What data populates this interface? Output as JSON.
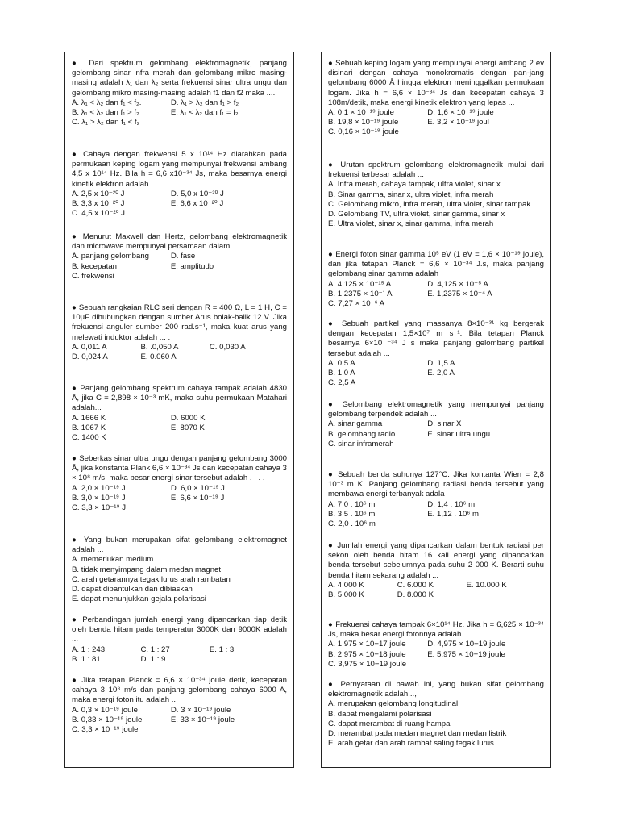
{
  "left": [
    {
      "text": "● Dari spektrum gelombang elektromagnetik, panjang gelombang sinar infra merah dan gelombang mikro masing-masing adalah λ₁ dan λ₂ serta frekuensi sinar ultra ungu dan gelombang mikro masing-masing adalah f1 dan f2 maka ....",
      "options": [
        [
          "A. λ₁ < λ₂ dan f₁ < f₂.",
          "D. λ₁ > λ₂ dan f₁ > f₂"
        ],
        [
          "B. λ₁ < λ₂ dan f₁ > f₂",
          "E. λ₁ < λ₂ dan f₁ = f₂"
        ],
        [
          "C. λ₁ > λ₂ dan f₁ < f₂"
        ]
      ]
    },
    {
      "text": "● Cahaya dengan frekwensi 5 x 10¹⁴ Hz diarahkan pada permukaan keping logam yang mempunyai frekwensi ambang 4,5 x 10¹⁴ Hz. Bila h = 6,6 x10⁻³⁴ Js, maka besarnya energi kinetik elektron adalah.......",
      "options": [
        [
          "A. 2,5 x 10⁻²⁰ J",
          "D. 5,0 x 10⁻²⁰ J"
        ],
        [
          "B. 3,3 x 10⁻²⁰ J",
          "E. 6,6 x 10⁻²⁰ J"
        ],
        [
          "C. 4,5 x 10⁻²⁰ J"
        ]
      ]
    },
    {
      "text": "● Menurut Maxwell dan Hertz, gelombang elektromagnetik dan microwave mempunyai persamaan dalam.........",
      "options": [
        [
          "A. panjang gelombang",
          "D. fase"
        ],
        [
          "B. kecepatan",
          "E. amplitudo"
        ],
        [
          "C. frekwensi"
        ]
      ]
    },
    {
      "text": "● Sebuah rangkaian RLC seri dengan R = 400 Ω, L = 1 H, C = 10μF dihubungkan dengan sumber Arus bolak-balik 12 V. Jika frekuensi anguler sumber 200 rad.s⁻¹, maka kuat arus yang melewati induktor adalah ... .",
      "options": [
        [
          "A. 0,011 A",
          "B. .0,050 A",
          "C. 0,030 A"
        ],
        [
          "D. 0,024 A",
          "E. 0.060 A"
        ]
      ]
    },
    {
      "text": "● Panjang gelombang spektrum cahaya tampak adalah 4830 Å, jika C = 2,898 × 10⁻³ mK, maka suhu permukaan Matahari adalah...",
      "options": [
        [
          "A. 1666 K",
          "D. 6000 K"
        ],
        [
          "B. 1067 K",
          "E. 8070 K"
        ],
        [
          "C. 1400 K"
        ]
      ]
    },
    {
      "text": "● Seberkas sinar ultra ungu dengan panjang gelombang 3000 Å, jika konstanta Plank 6,6 × 10⁻³⁴ Js dan kecepatan cahaya 3 × 10⁸ m/s, maka besar energi sinar tersebut adalah . . . .",
      "options": [
        [
          "A. 2,0 × 10⁻¹⁹ J",
          "D. 6,0 × 10⁻¹⁹ J"
        ],
        [
          "B. 3,0 × 10⁻¹⁹ J",
          "E. 6,6 × 10⁻¹⁹ J"
        ],
        [
          "C. 3,3 × 10⁻¹⁹ J"
        ]
      ]
    },
    {
      "text": "● Yang bukan merupakan sifat gelombang elektromagnet adalah ...",
      "options": [
        [
          "A. memerlukan medium"
        ],
        [
          "B. tidak menyimpang dalam medan magnet"
        ],
        [
          "C. arah getarannya tegak lurus arah rambatan"
        ],
        [
          "D. dapat dipantulkan dan dibiaskan"
        ],
        [
          "E. dapat menunjukkan gejala polarisasi"
        ]
      ]
    },
    {
      "text": "● Perbandingan jumlah energi yang dipancarkan tiap detik oleh benda hitam pada temperatur 3000K dan 9000K adalah ...",
      "options": [
        [
          "A. 1 : 243",
          "C. 1 : 27",
          "E. 1 : 3"
        ],
        [
          "B. 1 : 81",
          "D. 1 : 9"
        ]
      ]
    },
    {
      "text": "● Jika tetapan Planck = 6,6 × 10⁻³⁴ joule detik, kecepatan cahaya 3 10⁸ m/s dan panjang gelombang cahaya 6000 A, maka energi foton itu adalah ...",
      "options": [
        [
          "A. 0,3 × 10⁻¹⁹ joule",
          "D. 3 × 10⁻¹⁹ joule"
        ],
        [
          "B. 0,33 × 10⁻¹⁹ joule",
          "E. 33 × 10⁻¹⁹ joule"
        ],
        [
          "C. 3,3 × 10⁻¹⁹ joule"
        ]
      ]
    }
  ],
  "right": [
    {
      "text": "● Sebuah keping logam yang mempunyai energi ambang 2 ev disinari dengan cahaya monokromatis dengan pan-jang gelombang 6000 Å hingga elektron meninggalkan permukaan logam. Jika h = 6,6 × 10⁻³⁴ Js dan kecepatan cahaya 3 108m/detik, maka energi kinetik elektron yang lepas ...",
      "options": [
        [
          "A. 0,1 × 10⁻¹⁹ joule",
          "D. 1,6 × 10⁻¹⁹ joule"
        ],
        [
          "B. 19,8 × 10⁻¹⁹ joule",
          "E. 3,2 × 10⁻¹⁹ joul"
        ],
        [
          "C. 0,16 × 10⁻¹⁹ joule"
        ]
      ]
    },
    {
      "text": "● Urutan spektrum gelombang elektromagnetik mulai dari frekuensi terbesar adalah ...",
      "options": [
        [
          "A. Infra merah, cahaya tampak, ultra violet, sinar x"
        ],
        [
          "B. Sinar gamma, sinar x, ultra violet, infra merah"
        ],
        [
          "C. Gelombang mikro, infra merah, ultra violet, sinar tampak"
        ],
        [
          "D. Gelombang TV, ultra violet, sinar gamma, sinar x"
        ],
        [
          "E. Ultra violet, sinar x, sinar gamma, infra merah"
        ]
      ]
    },
    {
      "text": "● Energi foton sinar gamma 10⁵ eV (1 eV = 1,6 × 10⁻¹⁹ joule), dan jika tetapan Planck = 6,6 × 10⁻³⁴ J.s, maka panjang gelombang sinar gamma adalah",
      "options": [
        [
          "A. 4,125 × 10⁻¹⁵ A",
          "D. 4,125 × 10⁻⁵ A"
        ],
        [
          "B. 1,2375 × 10⁻¹ A",
          "E. 1,2375 × 10⁻⁴ A"
        ],
        [
          "C. 7,27 × 10⁻⁶ A"
        ]
      ]
    },
    {
      "text": "● Sebuah partikel yang massanya 8×10⁻³¹ kg bergerak dengan kecepatan 1,5×10⁷ m s⁻¹. Bila tetapan Planck besarnya 6×10 ⁻³⁴ J s maka panjang gelombang partikel tersebut adalah ...",
      "options": [
        [
          "A. 0,5 A",
          "D. 1,5 A"
        ],
        [
          "B. 1,0 A",
          "E. 2,0 A"
        ],
        [
          "C. 2,5 A"
        ]
      ]
    },
    {
      "text": "● Gelombang elektromagnetik yang mempunyai panjang gelombang terpendek adalah ...",
      "options": [
        [
          "A. sinar gamma",
          "D. sinar X"
        ],
        [
          "B. gelombang radio",
          "E. sinar ultra ungu"
        ],
        [
          "C. sinar inframerah"
        ]
      ]
    },
    {
      "text": "● Sebuah benda suhunya 127°C. Jika kontanta Wien = 2,8 10⁻³ m K. Panjang gelombang radiasi benda tersebut yang membawa energi terbanyak adala",
      "options": [
        [
          "A. 7,0 . 10⁶ m",
          "D. 1,4 . 10⁶ m"
        ],
        [
          "B. 3,5 . 10⁶ m",
          "E. 1,12 . 10⁶ m"
        ],
        [
          "C. 2,0 . 10⁶ m"
        ]
      ]
    },
    {
      "text": "● Jumlah energi yang dipancarkan dalam bentuk radiasi per sekon oleh benda hitam 16 kali energi yang dipancarkan benda tersebut sebelumnya pada suhu 2 000 K. Berarti suhu benda hitam sekarang adalah ...",
      "options": [
        [
          "A. 4.000 K",
          "C. 6.000 K",
          "E. 10.000 K"
        ],
        [
          "B. 5.000 K",
          "D. 8.000 K"
        ]
      ]
    },
    {
      "text": "● Frekuensi cahaya tampak 6×10¹⁴ Hz. Jika h = 6,625 × 10⁻³⁴ Js, maka besar energi fotonnya adalah ...",
      "options": [
        [
          "A. 1,975 × 10−17 joule",
          "D. 4,975 × 10−19 joule"
        ],
        [
          "B. 2,975 × 10−18 joule",
          "E. 5,975 × 10−19 joule"
        ],
        [
          "C. 3,975 × 10−19 joule"
        ]
      ]
    },
    {
      "text": "● Pernyataan di bawah ini, yang bukan sifat gelombang elektromagnetik adalah...,",
      "options": [
        [
          "A. merupakan gelombang longitudinal"
        ],
        [
          "B. dapat mengalami polarisasi"
        ],
        [
          "C. dapat merambat di ruang hampa"
        ],
        [
          "D. merambat pada medan magnet dan medan listrik"
        ],
        [
          "E. arah getar dan arah rambat saling tegak lurus"
        ]
      ]
    }
  ]
}
